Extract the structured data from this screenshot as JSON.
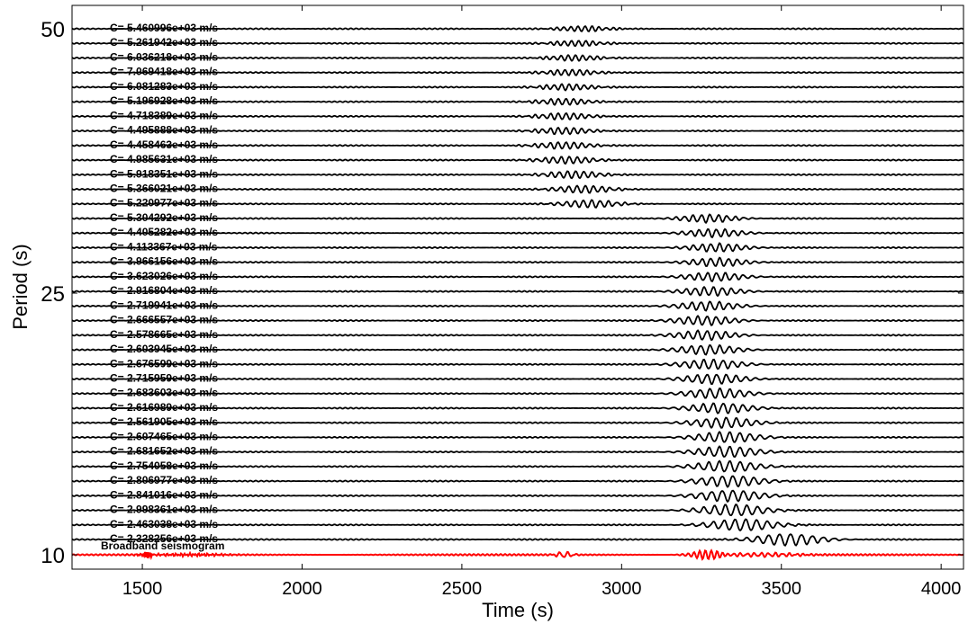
{
  "chart_data": {
    "type": "line",
    "xlabel": "Time (s)",
    "ylabel": "Period (s)",
    "xlim": [
      1280,
      4070
    ],
    "xticks": [
      1500,
      2000,
      2500,
      3000,
      3500,
      4000
    ],
    "ylim": [
      9,
      51
    ],
    "yticks": [
      10,
      25,
      50
    ],
    "grid": false,
    "bottom_trace": {
      "label": "Broadband seismogram",
      "color": "#ff0000"
    },
    "trace_color": "#000000",
    "velocity_labels": [
      "C= 5.460996e+03 m/s",
      "C= 5.261942e+03 m/s",
      "C= 6.036218e+03 m/s",
      "C= 7.069418e+03 m/s",
      "C= 6.081283e+03 m/s",
      "C= 5.196928e+03 m/s",
      "C= 4.718389e+03 m/s",
      "C= 4.495888e+03 m/s",
      "C= 4.458463e+03 m/s",
      "C= 4.985631e+03 m/s",
      "C= 5.918351e+03 m/s",
      "C= 5.366021e+03 m/s",
      "C= 5.220977e+03 m/s",
      "C= 5.304292e+03 m/s",
      "C= 4.405282e+03 m/s",
      "C= 4.113367e+03 m/s",
      "C= 3.966156e+03 m/s",
      "C= 3.623026e+03 m/s",
      "C= 2.916804e+03 m/s",
      "C= 2.719941e+03 m/s",
      "C= 2.666557e+03 m/s",
      "C= 2.578665e+03 m/s",
      "C= 2.603945e+03 m/s",
      "C= 2.676599e+03 m/s",
      "C= 2.715959e+03 m/s",
      "C= 2.683603e+03 m/s",
      "C= 2.616989e+03 m/s",
      "C= 2.561905e+03 m/s",
      "C= 2.607465e+03 m/s",
      "C= 2.681652e+03 m/s",
      "C= 2.754058e+03 m/s",
      "C= 2.806977e+03 m/s",
      "C= 2.841016e+03 m/s",
      "C= 2.998361e+03 m/s",
      "C= 2.463038e+03 m/s",
      "C= 2.328256e+03 m/s"
    ],
    "wave_packet_centers_s": [
      2880,
      2860,
      2850,
      2840,
      2830,
      2820,
      2820,
      2820,
      2820,
      2830,
      2850,
      2880,
      2900,
      3270,
      3290,
      3300,
      3300,
      3290,
      3280,
      3270,
      3260,
      3260,
      3270,
      3280,
      3290,
      3300,
      3310,
      3320,
      3330,
      3330,
      3330,
      3340,
      3340,
      3350,
      3380,
      3520
    ]
  }
}
